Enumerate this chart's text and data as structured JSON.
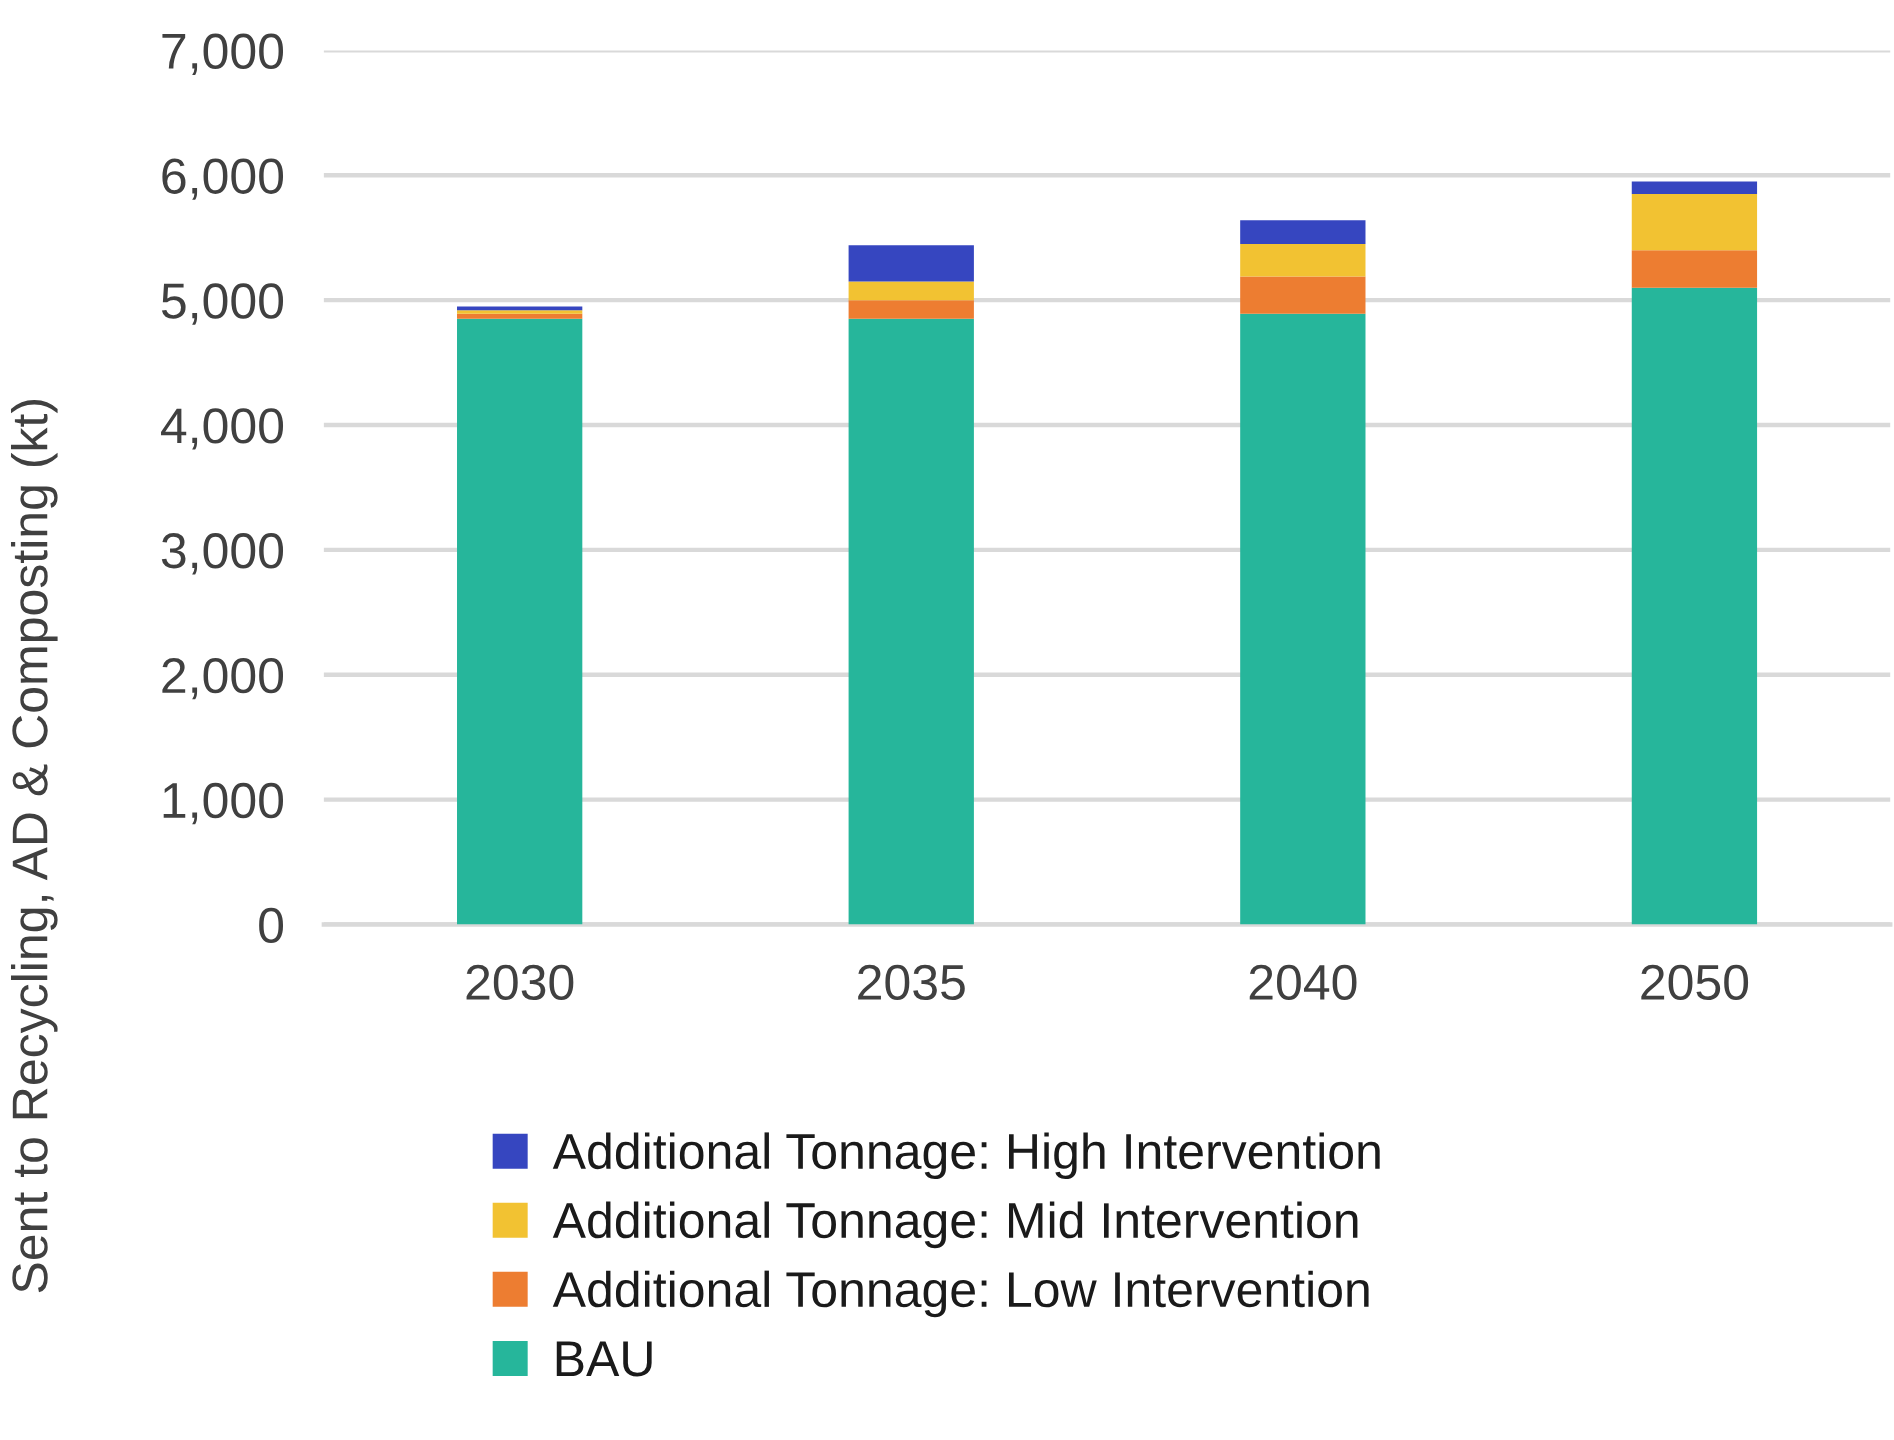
{
  "chart_data": {
    "type": "bar",
    "stacked": true,
    "ylabel": "Sent to Recycling, AD & Composting (kt)",
    "categories": [
      "2030",
      "2035",
      "2040",
      "2050"
    ],
    "series": [
      {
        "name": "BAU",
        "color": "#26b69b",
        "values": [
          4850,
          4850,
          4890,
          5100
        ]
      },
      {
        "name": "Additional Tonnage: Low Intervention",
        "color": "#ed7d31",
        "values": [
          40,
          150,
          300,
          300
        ]
      },
      {
        "name": "Additional Tonnage: Mid Intervention",
        "color": "#f2c232",
        "values": [
          30,
          150,
          260,
          450
        ]
      },
      {
        "name": "Additional Tonnage: High Intervention",
        "color": "#3646c0",
        "values": [
          30,
          290,
          190,
          100
        ]
      }
    ],
    "ylim": [
      0,
      7000
    ],
    "yticks": [
      0,
      {
        "value": 1000,
        "label": "1,000"
      },
      {
        "value": 2000,
        "label": "2,000"
      },
      {
        "value": 3000,
        "label": "3,000"
      },
      {
        "value": 4000,
        "label": "4,000"
      },
      {
        "value": 5000,
        "label": "5,000"
      },
      {
        "value": 6000,
        "label": "6,000"
      },
      {
        "value": 7000,
        "label": "7,000"
      }
    ],
    "grid": "y",
    "legend": "bottom"
  }
}
